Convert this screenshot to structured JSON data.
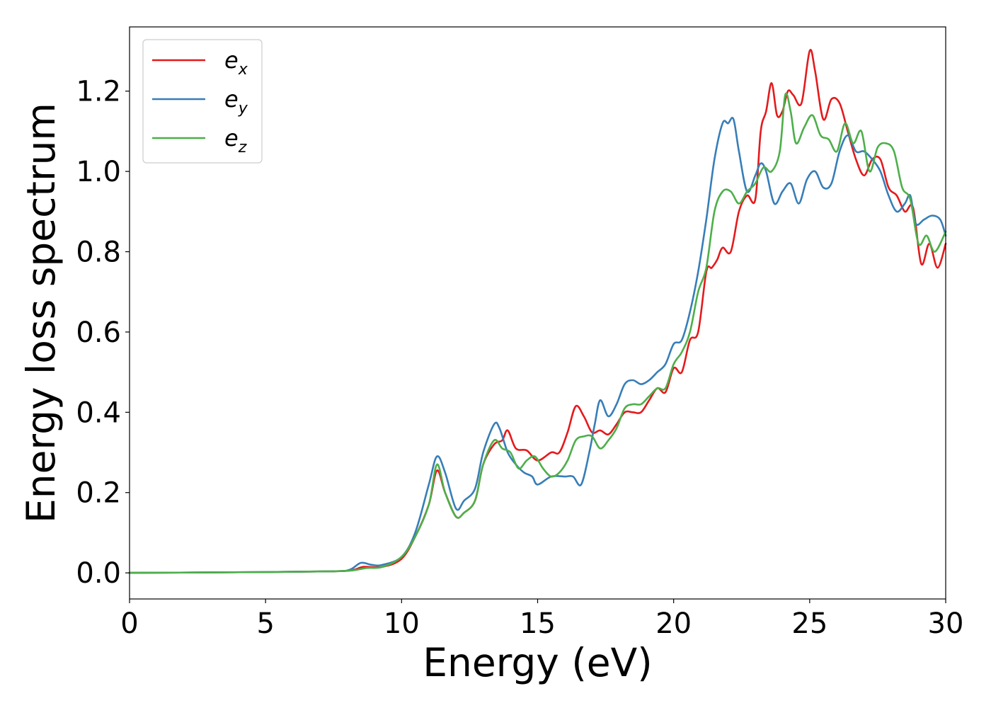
{
  "chart_data": {
    "type": "line",
    "title": "",
    "xlabel": "Energy (eV)",
    "ylabel": "Energy loss spectrum",
    "xlim": [
      0,
      30
    ],
    "ylim": [
      -0.065,
      1.36
    ],
    "xticks": [
      0,
      5,
      10,
      15,
      20,
      25,
      30
    ],
    "xtick_labels": [
      "0",
      "5",
      "10",
      "15",
      "20",
      "25",
      "30"
    ],
    "yticks": [
      0.0,
      0.2,
      0.4,
      0.6,
      0.8,
      1.0,
      1.2
    ],
    "ytick_labels": [
      "0.0",
      "0.2",
      "0.4",
      "0.6",
      "0.8",
      "1.0",
      "1.2"
    ],
    "grid": false,
    "legend_position": "top-left",
    "series": [
      {
        "name": "e",
        "sub": "x",
        "color": "#e41a1c",
        "x": [
          0,
          5,
          7.5,
          8.2,
          8.6,
          9.3,
          10,
          10.5,
          11,
          11.3,
          11.6,
          12,
          12.3,
          12.7,
          13,
          13.4,
          13.7,
          13.9,
          14.2,
          14.6,
          15,
          15.5,
          15.8,
          16.1,
          16.4,
          16.7,
          17,
          17.3,
          17.6,
          17.9,
          18.2,
          18.5,
          18.8,
          19.1,
          19.4,
          19.7,
          20,
          20.3,
          20.6,
          20.9,
          21.2,
          21.4,
          21.6,
          21.8,
          22.1,
          22.4,
          22.7,
          23,
          23.2,
          23.4,
          23.6,
          23.8,
          24.0,
          24.2,
          24.4,
          24.7,
          25,
          25.2,
          25.5,
          25.8,
          26.1,
          26.4,
          26.7,
          27,
          27.3,
          27.6,
          27.9,
          28.2,
          28.5,
          28.8,
          29.1,
          29.4,
          29.7,
          30
        ],
        "y": [
          0,
          0.002,
          0.004,
          0.007,
          0.015,
          0.015,
          0.035,
          0.09,
          0.17,
          0.255,
          0.2,
          0.14,
          0.15,
          0.18,
          0.27,
          0.32,
          0.33,
          0.355,
          0.31,
          0.305,
          0.28,
          0.3,
          0.3,
          0.35,
          0.415,
          0.39,
          0.35,
          0.355,
          0.345,
          0.37,
          0.4,
          0.4,
          0.4,
          0.43,
          0.46,
          0.45,
          0.51,
          0.5,
          0.58,
          0.6,
          0.75,
          0.76,
          0.78,
          0.81,
          0.8,
          0.9,
          0.94,
          0.93,
          1.1,
          1.15,
          1.22,
          1.14,
          1.15,
          1.2,
          1.19,
          1.17,
          1.3,
          1.25,
          1.13,
          1.18,
          1.17,
          1.1,
          1.03,
          0.99,
          1.03,
          1.03,
          0.96,
          0.94,
          0.9,
          0.91,
          0.77,
          0.82,
          0.76,
          0.82
        ]
      },
      {
        "name": "e",
        "sub": "y",
        "color": "#377eb8",
        "x": [
          0,
          5,
          7.5,
          8.1,
          8.5,
          8.9,
          9.3,
          10,
          10.5,
          11,
          11.3,
          11.6,
          12,
          12.3,
          12.7,
          13,
          13.4,
          13.6,
          13.9,
          14.2,
          14.5,
          14.8,
          15,
          15.5,
          16,
          16.3,
          16.6,
          16.9,
          17.1,
          17.3,
          17.6,
          17.9,
          18.2,
          18.5,
          18.8,
          19.1,
          19.4,
          19.7,
          20,
          20.3,
          20.6,
          20.9,
          21.2,
          21.5,
          21.8,
          22.0,
          22.2,
          22.4,
          22.7,
          23.0,
          23.2,
          23.4,
          23.7,
          24.0,
          24.3,
          24.6,
          24.9,
          25.2,
          25.5,
          25.8,
          26.1,
          26.4,
          26.7,
          27,
          27.3,
          27.6,
          27.9,
          28.2,
          28.5,
          28.7,
          28.9,
          29.2,
          29.5,
          29.8,
          30
        ],
        "y": [
          0,
          0.002,
          0.004,
          0.008,
          0.025,
          0.02,
          0.02,
          0.04,
          0.1,
          0.22,
          0.29,
          0.25,
          0.16,
          0.18,
          0.21,
          0.3,
          0.37,
          0.36,
          0.3,
          0.27,
          0.25,
          0.24,
          0.22,
          0.24,
          0.24,
          0.24,
          0.22,
          0.3,
          0.37,
          0.43,
          0.39,
          0.42,
          0.47,
          0.48,
          0.47,
          0.48,
          0.5,
          0.52,
          0.57,
          0.58,
          0.65,
          0.75,
          0.88,
          1.03,
          1.12,
          1.12,
          1.13,
          1.05,
          0.95,
          0.99,
          1.02,
          1.0,
          0.92,
          0.95,
          0.97,
          0.92,
          0.98,
          1.0,
          0.96,
          0.97,
          1.05,
          1.09,
          1.05,
          1.05,
          1.03,
          1.0,
          0.94,
          0.9,
          0.92,
          0.94,
          0.87,
          0.88,
          0.89,
          0.88,
          0.84
        ]
      },
      {
        "name": "e",
        "sub": "z",
        "color": "#4daf4a",
        "x": [
          0,
          5,
          7.5,
          8.2,
          8.7,
          9.3,
          10,
          10.5,
          11,
          11.3,
          11.6,
          12,
          12.3,
          12.7,
          13,
          13.4,
          13.7,
          14,
          14.3,
          14.6,
          14.9,
          15.2,
          15.5,
          15.8,
          16.1,
          16.4,
          16.7,
          17,
          17.3,
          17.6,
          17.9,
          18.2,
          18.5,
          18.8,
          19.1,
          19.4,
          19.7,
          20,
          20.3,
          20.6,
          20.9,
          21.2,
          21.5,
          21.8,
          22.1,
          22.4,
          22.7,
          23.0,
          23.3,
          23.6,
          23.9,
          24.1,
          24.3,
          24.5,
          24.8,
          25.1,
          25.4,
          25.7,
          26.0,
          26.3,
          26.6,
          26.9,
          27.2,
          27.5,
          27.8,
          28.1,
          28.4,
          28.7,
          29.0,
          29.3,
          29.6,
          30
        ],
        "y": [
          0,
          0.002,
          0.004,
          0.006,
          0.012,
          0.015,
          0.04,
          0.09,
          0.17,
          0.27,
          0.2,
          0.14,
          0.15,
          0.18,
          0.27,
          0.33,
          0.31,
          0.3,
          0.26,
          0.28,
          0.29,
          0.26,
          0.24,
          0.25,
          0.28,
          0.33,
          0.34,
          0.34,
          0.31,
          0.33,
          0.36,
          0.41,
          0.42,
          0.42,
          0.44,
          0.46,
          0.46,
          0.52,
          0.55,
          0.6,
          0.7,
          0.76,
          0.9,
          0.95,
          0.95,
          0.92,
          0.95,
          0.97,
          1.01,
          1.0,
          1.05,
          1.19,
          1.15,
          1.07,
          1.11,
          1.14,
          1.09,
          1.08,
          1.05,
          1.12,
          1.07,
          1.1,
          1.0,
          1.06,
          1.07,
          1.05,
          0.96,
          0.93,
          0.82,
          0.84,
          0.8,
          0.85
        ]
      }
    ]
  }
}
